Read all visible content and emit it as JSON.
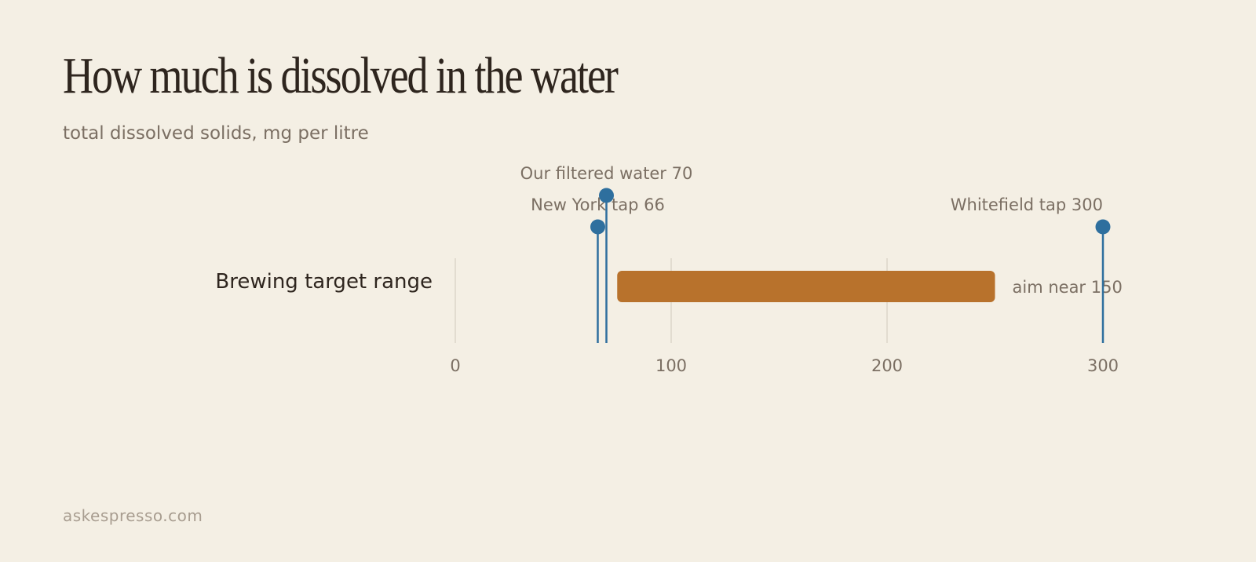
{
  "title": "How much is dissolved in the water",
  "subtitle": "total dissolved solids, mg per litre",
  "footer": "askespresso.com",
  "chart_data": {
    "type": "bar",
    "xlim": [
      0,
      300
    ],
    "ticks": [
      0,
      100,
      200,
      300
    ],
    "grid": true,
    "band": {
      "label": "Brewing target range",
      "from": 75,
      "to": 250,
      "note": "aim near 150",
      "color": "#b8722c"
    },
    "markers": [
      {
        "label": "New York tap 66",
        "value": 66,
        "level": 1
      },
      {
        "label": "Our filtered water 70",
        "value": 70,
        "level": 0
      },
      {
        "label": "Whitefield tap 300",
        "value": 300,
        "level": 1
      }
    ],
    "marker_color": "#2e6f9e"
  }
}
